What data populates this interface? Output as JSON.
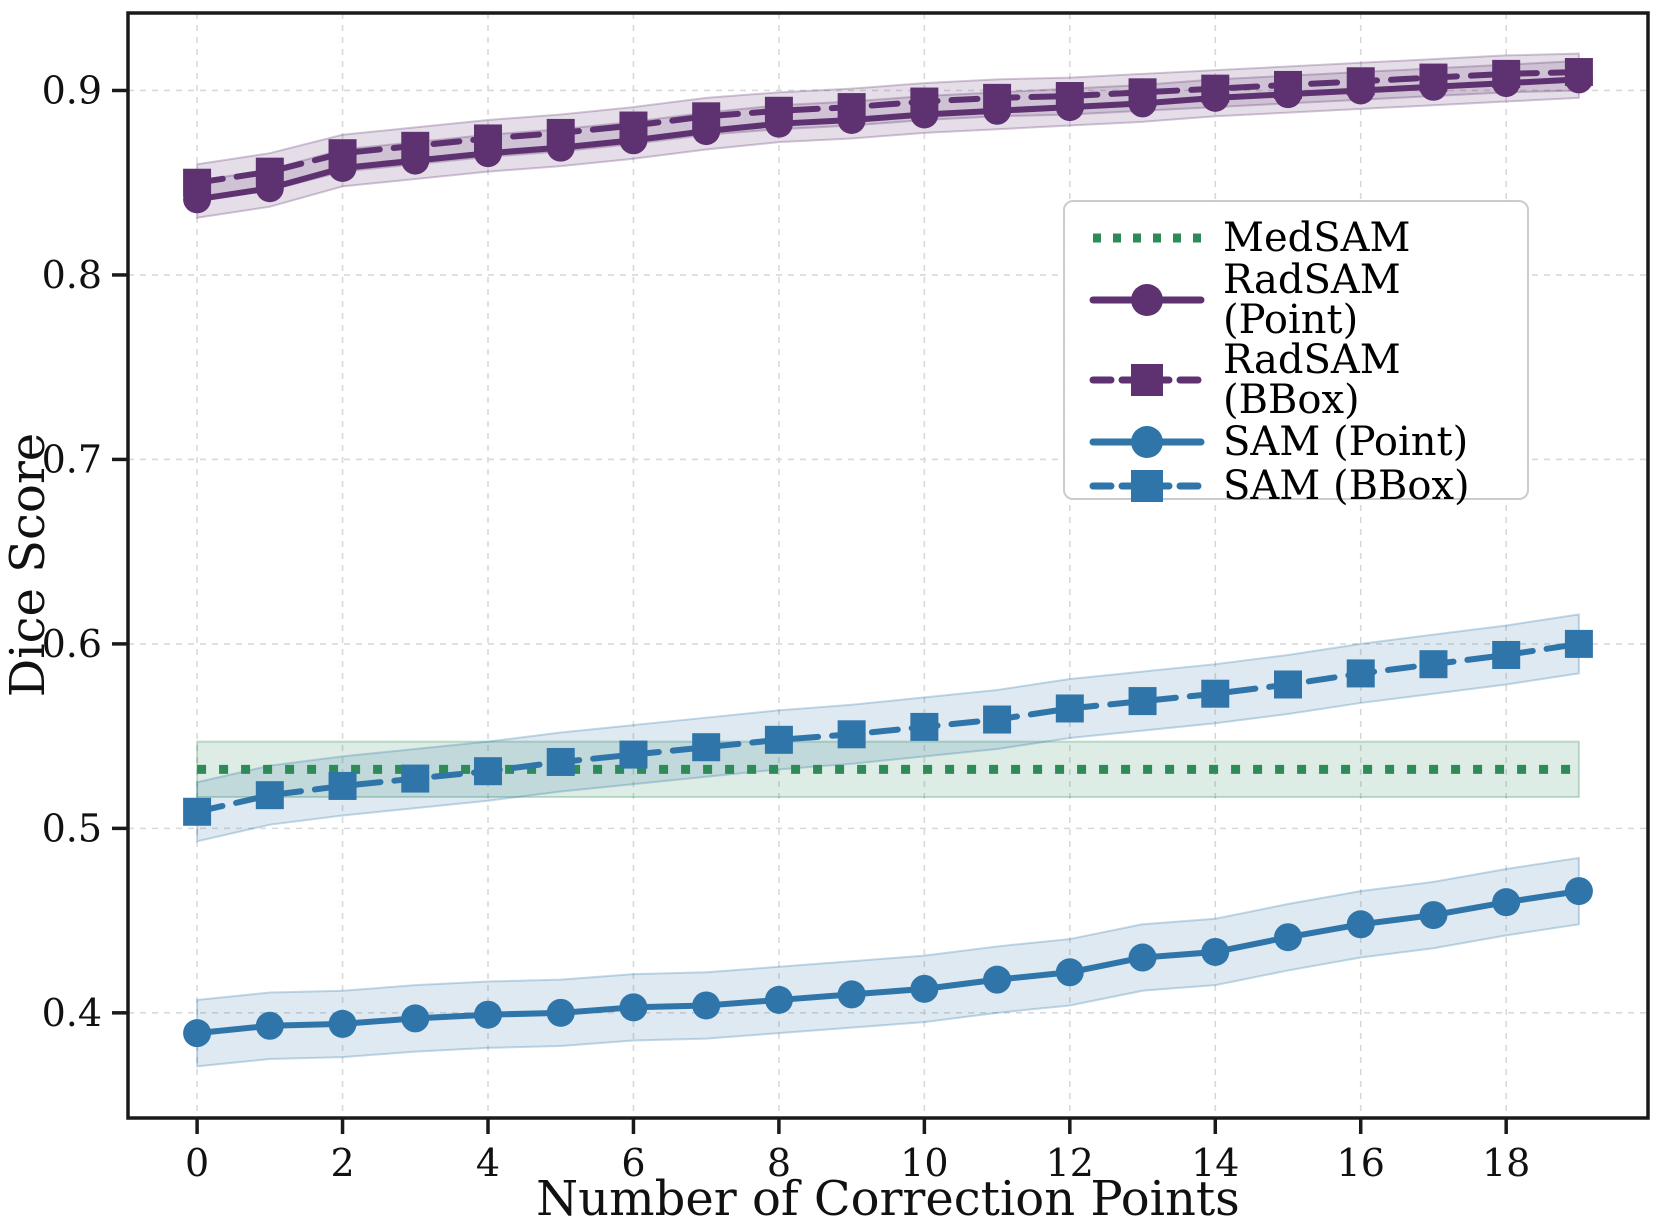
{
  "chart_data": {
    "type": "line",
    "title": "",
    "xlabel": "Number of Correction Points",
    "ylabel": "Dice Score",
    "xlim": [
      -0.95,
      19.95
    ],
    "ylim": [
      0.343,
      0.942
    ],
    "xticks": [
      0,
      2,
      4,
      6,
      8,
      10,
      12,
      14,
      16,
      18
    ],
    "yticks": [
      0.4,
      0.5,
      0.6,
      0.7,
      0.8,
      0.9
    ],
    "grid": true,
    "legend_position": "upper right",
    "x": [
      0,
      1,
      2,
      3,
      4,
      5,
      6,
      7,
      8,
      9,
      10,
      11,
      12,
      13,
      14,
      15,
      16,
      17,
      18,
      19
    ],
    "series": [
      {
        "name": "MedSAM",
        "style": "dotted",
        "marker": "none",
        "color": "#2e8b57",
        "band": 0.015,
        "values": [
          0.532,
          0.532,
          0.532,
          0.532,
          0.532,
          0.532,
          0.532,
          0.532,
          0.532,
          0.532,
          0.532,
          0.532,
          0.532,
          0.532,
          0.532,
          0.532,
          0.532,
          0.532,
          0.532,
          0.532
        ]
      },
      {
        "name": "RadSAM (Point)",
        "style": "solid",
        "marker": "circle",
        "color": "#5e3270",
        "band": 0.01,
        "values": [
          0.841,
          0.847,
          0.858,
          0.862,
          0.866,
          0.869,
          0.873,
          0.878,
          0.882,
          0.884,
          0.887,
          0.889,
          0.891,
          0.893,
          0.896,
          0.898,
          0.9,
          0.902,
          0.904,
          0.906
        ]
      },
      {
        "name": "RadSAM (BBox)",
        "style": "dashed",
        "marker": "square",
        "color": "#5e3270",
        "band": 0.01,
        "values": [
          0.85,
          0.856,
          0.866,
          0.87,
          0.874,
          0.877,
          0.881,
          0.886,
          0.889,
          0.891,
          0.894,
          0.896,
          0.897,
          0.899,
          0.901,
          0.903,
          0.905,
          0.907,
          0.909,
          0.91
        ]
      },
      {
        "name": "SAM (Point)",
        "style": "solid",
        "marker": "circle",
        "color": "#2f75a9",
        "band": 0.018,
        "values": [
          0.389,
          0.393,
          0.394,
          0.397,
          0.399,
          0.4,
          0.403,
          0.404,
          0.407,
          0.41,
          0.413,
          0.418,
          0.422,
          0.43,
          0.433,
          0.441,
          0.448,
          0.453,
          0.46,
          0.466
        ]
      },
      {
        "name": "SAM (BBox)",
        "style": "dashed",
        "marker": "square",
        "color": "#2f75a9",
        "band": 0.016,
        "values": [
          0.509,
          0.518,
          0.523,
          0.527,
          0.531,
          0.536,
          0.54,
          0.544,
          0.548,
          0.551,
          0.555,
          0.559,
          0.565,
          0.569,
          0.573,
          0.578,
          0.584,
          0.589,
          0.594,
          0.6
        ]
      }
    ],
    "colors": {
      "purple": "#5e3270",
      "blue": "#2f75a9",
      "green": "#2e8b57",
      "grid": "#d9d9d9",
      "spine": "#1a1a1a"
    }
  }
}
